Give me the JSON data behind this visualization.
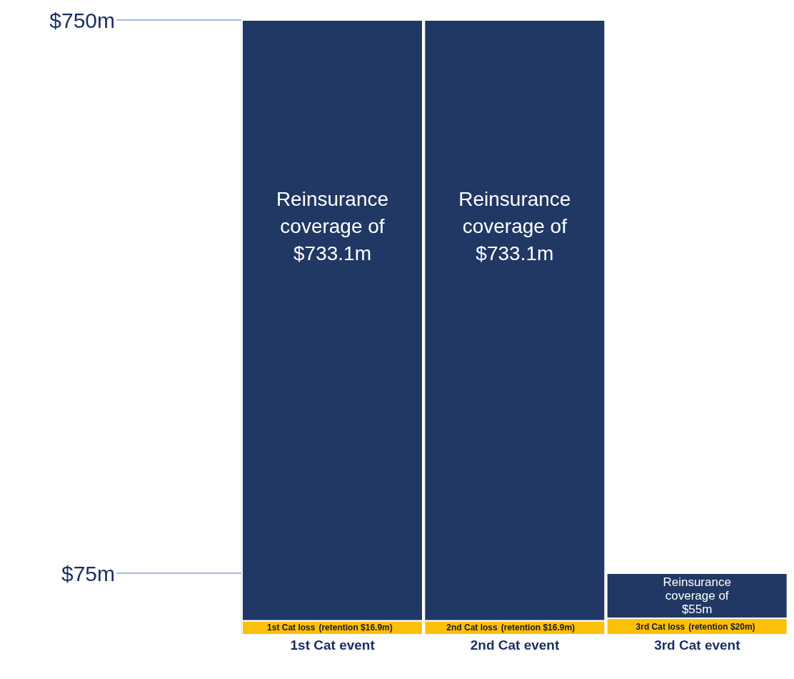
{
  "chart_data": {
    "type": "bar",
    "stacked": true,
    "categories": [
      "1st Cat event",
      "2nd Cat event",
      "3rd Cat event"
    ],
    "series": [
      {
        "color": "#fdc00a",
        "values": [
          16.9,
          16.9,
          20
        ],
        "value_labels": [
          "(retention $16.9m)",
          "(retention $16.9m)",
          "(retention $20m)"
        ]
      },
      {
        "color": "#213864",
        "values": [
          733.1,
          733.1,
          55
        ],
        "value_labels": [
          "Reinsurance coverage of $733.1m",
          "Reinsurance coverage of $733.1m",
          "Reinsurance coverage of $55m"
        ]
      }
    ],
    "ylim": [
      0,
      750
    ],
    "yticks": [
      {
        "value": 75,
        "label": "$75m"
      },
      {
        "value": 750,
        "label": "$750m"
      }
    ],
    "annotations": [
      {
        "text": "1st Cat loss",
        "x": "1st Cat event",
        "y": 16.9
      },
      {
        "text": "2nd Cat loss",
        "x": "2nd Cat event",
        "y": 16.9
      },
      {
        "text": "3rd Cat loss",
        "x": "3rd Cat event",
        "y": 20
      }
    ],
    "grid": false
  }
}
